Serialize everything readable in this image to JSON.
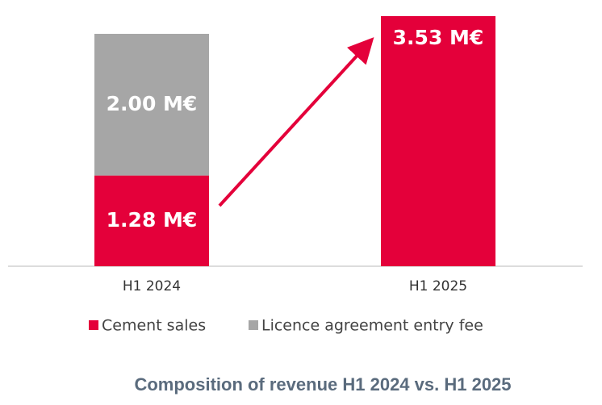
{
  "chart_data": {
    "type": "stacked_bar",
    "title": "Composition of revenue H1 2024 vs. H1 2025",
    "categories": [
      "H1 2024",
      "H1 2025"
    ],
    "series": [
      {
        "name": "Cement sales",
        "color": "#e4003a",
        "values": [
          1.28,
          3.53
        ],
        "value_labels": [
          "1.28 M€",
          "3.53 M€"
        ]
      },
      {
        "name": "Licence agreement entry fee",
        "color": "#a6a6a6",
        "values": [
          2.0,
          null
        ],
        "value_labels": [
          "2.00 M€",
          null
        ]
      }
    ]
  }
}
